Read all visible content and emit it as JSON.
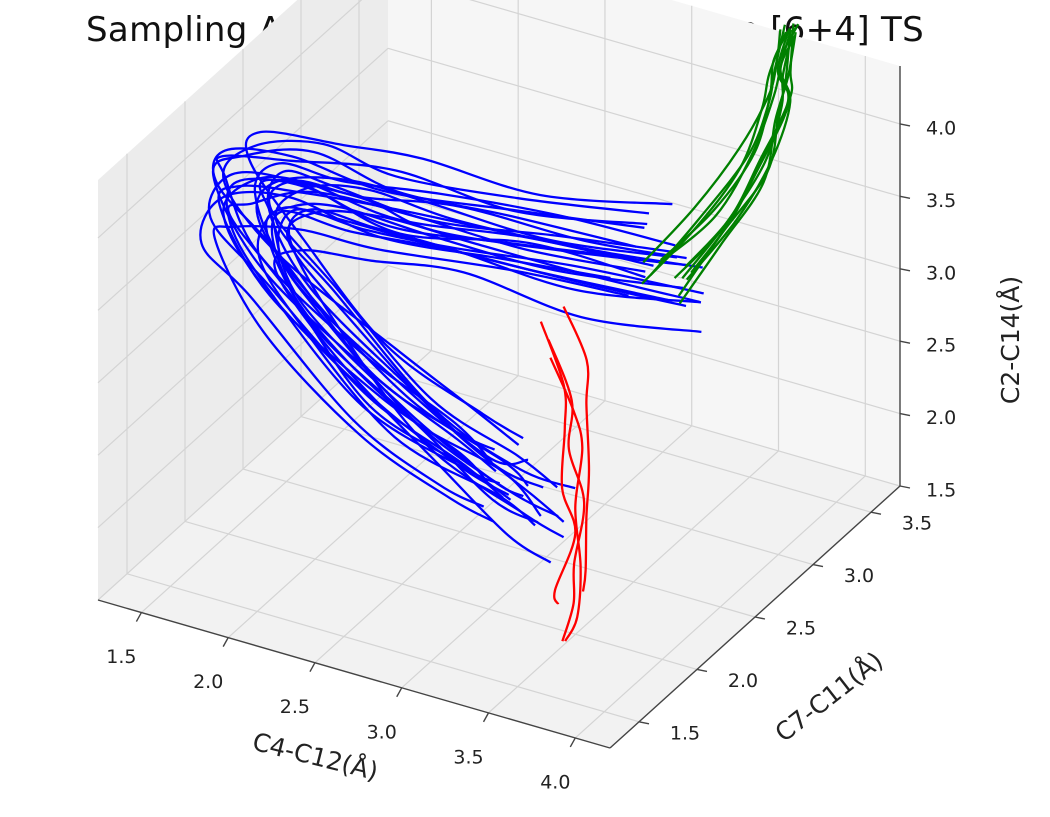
{
  "chart_data": {
    "type": "line",
    "title": "Sampling Around the [4+2] TS and the [6+4] TS",
    "xlabel": "C4-C12(Å)",
    "ylabel": "C7-C11(Å)",
    "zlabel": "C2-C14(Å)",
    "xlim": [
      1.25,
      4.2
    ],
    "ylim": [
      1.25,
      3.75
    ],
    "zlim": [
      1.5,
      4.4
    ],
    "xticks": [
      "1.5",
      "2.0",
      "2.5",
      "3.0",
      "3.5",
      "4.0"
    ],
    "yticks": [
      "1.5",
      "2.0",
      "2.5",
      "3.0",
      "3.5"
    ],
    "zticks": [
      "1.5",
      "2.0",
      "2.5",
      "3.0",
      "3.5",
      "4.0"
    ],
    "grid": true,
    "series": [
      {
        "color": "#0000ff",
        "approx_trajectory_count": 25,
        "trajectory_template": [
          {
            "x": 3.2,
            "y": 3.2,
            "z": 3.0
          },
          {
            "x": 2.6,
            "y": 3.05,
            "z": 3.05
          },
          {
            "x": 2.0,
            "y": 2.9,
            "z": 3.15
          },
          {
            "x": 1.6,
            "y": 2.75,
            "z": 3.3
          },
          {
            "x": 1.3,
            "y": 2.6,
            "z": 3.35
          },
          {
            "x": 1.3,
            "y": 2.45,
            "z": 3.25
          },
          {
            "x": 1.7,
            "y": 2.3,
            "z": 2.95
          },
          {
            "x": 2.4,
            "y": 2.1,
            "z": 2.6
          },
          {
            "x": 3.0,
            "y": 1.95,
            "z": 2.45
          },
          {
            "x": 3.3,
            "y": 1.85,
            "z": 2.45
          }
        ]
      },
      {
        "color": "#008000",
        "approx_trajectory_count": 12,
        "trajectory_template": [
          {
            "x": 3.2,
            "y": 3.2,
            "z": 3.0
          },
          {
            "x": 3.3,
            "y": 3.5,
            "z": 3.2
          },
          {
            "x": 3.35,
            "y": 3.75,
            "z": 3.45
          },
          {
            "x": 3.35,
            "y": 3.95,
            "z": 3.7
          },
          {
            "x": 3.3,
            "y": 4.05,
            "z": 3.85
          },
          {
            "x": 3.25,
            "y": 4.2,
            "z": 4.0
          }
        ]
      },
      {
        "color": "#ff0000",
        "approx_trajectory_count": 4,
        "trajectory_template": [
          {
            "x": 2.95,
            "y": 2.55,
            "z": 2.9
          },
          {
            "x": 3.1,
            "y": 2.5,
            "z": 2.6
          },
          {
            "x": 3.15,
            "y": 2.45,
            "z": 2.35
          },
          {
            "x": 3.25,
            "y": 2.35,
            "z": 2.05
          },
          {
            "x": 3.35,
            "y": 2.2,
            "z": 1.8
          },
          {
            "x": 3.4,
            "y": 2.05,
            "z": 1.6
          },
          {
            "x": 3.45,
            "y": 1.95,
            "z": 1.5
          }
        ]
      }
    ]
  }
}
